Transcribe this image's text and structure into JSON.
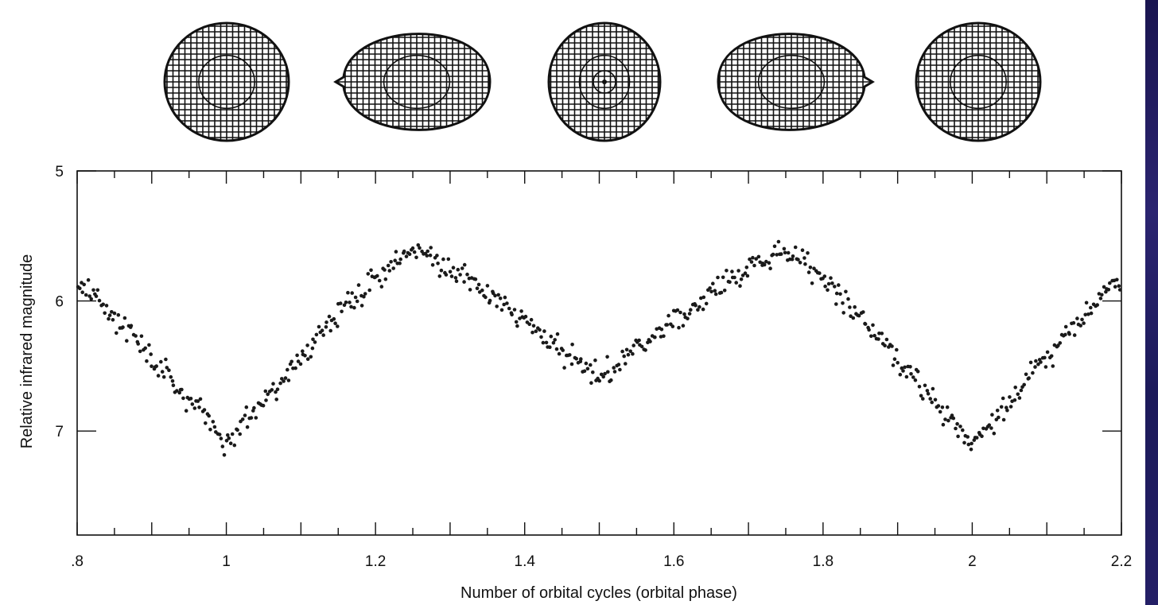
{
  "chart_data": {
    "type": "scatter",
    "title": "",
    "xlabel": "Number of orbital cycles  (orbital phase)",
    "ylabel": "Relative infrared magnitude",
    "xlim": [
      0.8,
      2.2
    ],
    "ylim": [
      7.8,
      5.0
    ],
    "y_inverted": true,
    "grid": false,
    "x_ticks": [
      0.8,
      1.0,
      1.2,
      1.4,
      1.6,
      1.8,
      2.0,
      2.2
    ],
    "x_tick_labels": [
      ".8",
      "1",
      "1.2",
      "1.4",
      "1.6",
      "1.8",
      "2",
      "2.2"
    ],
    "y_ticks": [
      5,
      6,
      7
    ],
    "y_tick_labels": [
      "5",
      "6",
      "7"
    ],
    "marker_color": "#1a1a1a",
    "light_curve_model": {
      "mean": 6.3,
      "primary_minimum": 7.1,
      "secondary_minimum": 6.6,
      "maximum": 5.6,
      "scatter": 0.07
    },
    "illustration": {
      "description_icons": [
        "sphere-icon",
        "teardrop-right-icon",
        "sphere-front-icon",
        "teardrop-left-icon",
        "sphere-icon"
      ]
    }
  }
}
